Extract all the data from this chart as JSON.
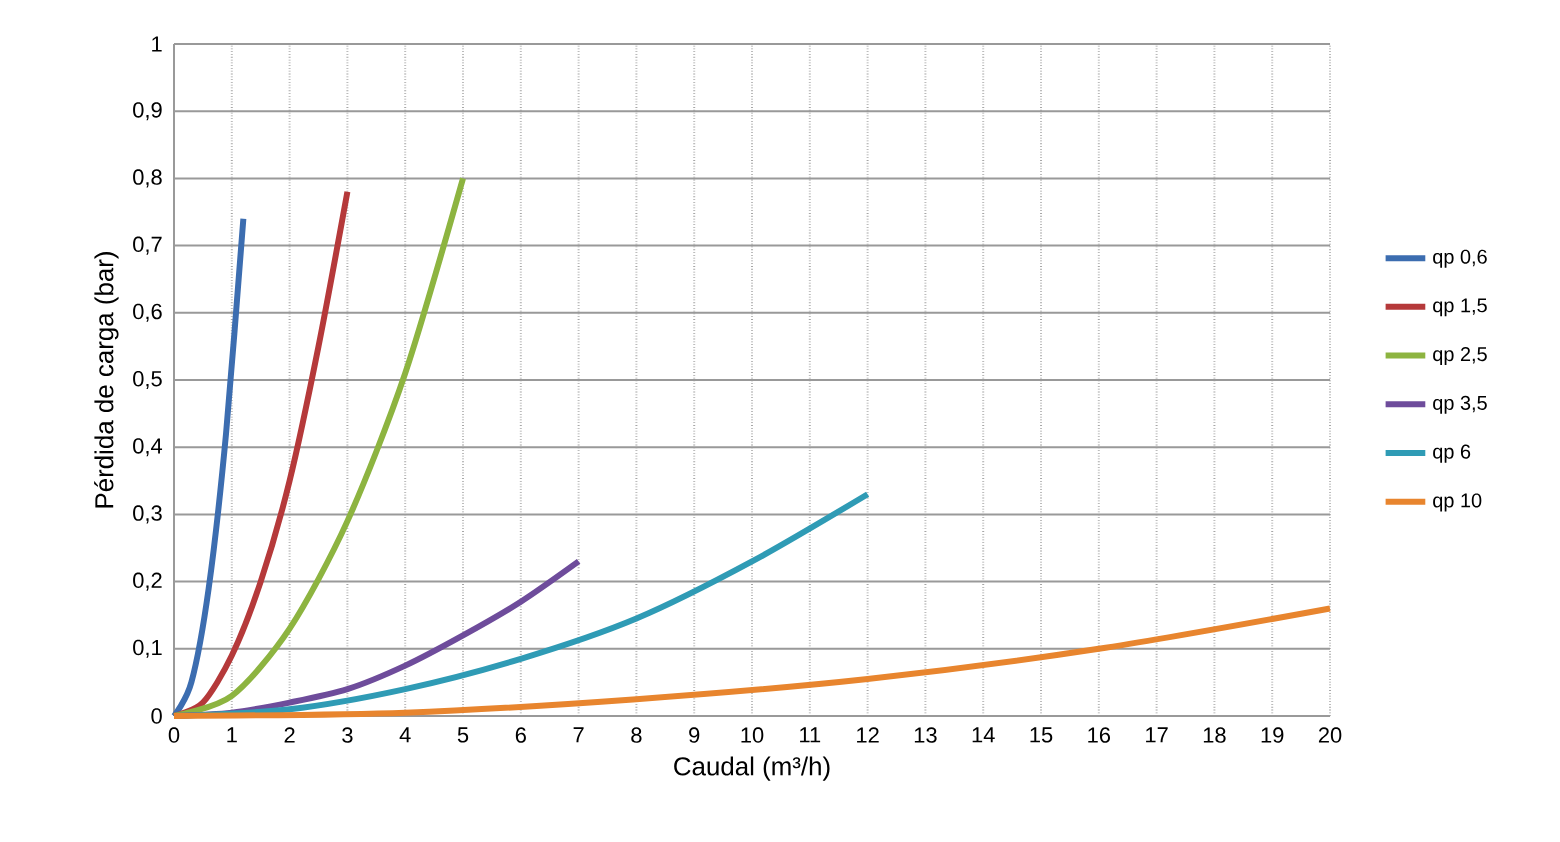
{
  "chart_data": {
    "type": "line",
    "xlabel": "Caudal (m³/h)",
    "ylabel": "Pérdida de carga (bar)",
    "xlim": [
      0,
      20
    ],
    "ylim": [
      0,
      1
    ],
    "xticks": [
      0,
      1,
      2,
      3,
      4,
      5,
      6,
      7,
      8,
      9,
      10,
      11,
      12,
      13,
      14,
      15,
      16,
      17,
      18,
      19,
      20
    ],
    "yticks": [
      0,
      {
        "value": 0.1,
        "label": "0,1"
      },
      {
        "value": 0.2,
        "label": "0,2"
      },
      {
        "value": 0.3,
        "label": "0,3"
      },
      {
        "value": 0.4,
        "label": "0,4"
      },
      {
        "value": 0.5,
        "label": "0,5"
      },
      {
        "value": 0.6,
        "label": "0,6"
      },
      {
        "value": 0.7,
        "label": "0,7"
      },
      {
        "value": 0.8,
        "label": "0,8"
      },
      {
        "value": 0.9,
        "label": "0,9"
      },
      1
    ],
    "grid": true,
    "legend": "right",
    "marker": "none",
    "line_style": "solid",
    "series": [
      {
        "name": "qp 0,6",
        "color": "#3c6db0",
        "x": [
          0,
          0.3,
          0.6,
          0.9,
          1.2
        ],
        "values": [
          0,
          0.05,
          0.19,
          0.42,
          0.74
        ]
      },
      {
        "name": "qp 1,5",
        "color": "#b5393a",
        "x": [
          0,
          0.5,
          1,
          1.5,
          2,
          2.5,
          3
        ],
        "values": [
          0,
          0.02,
          0.09,
          0.2,
          0.35,
          0.55,
          0.78
        ]
      },
      {
        "name": "qp 2,5",
        "color": "#8db440",
        "x": [
          0,
          1,
          2,
          3,
          4,
          5
        ],
        "values": [
          0,
          0.03,
          0.13,
          0.29,
          0.51,
          0.8
        ]
      },
      {
        "name": "qp 3,5",
        "color": "#6e4c9b",
        "x": [
          0,
          1,
          2,
          3,
          4,
          5,
          6,
          7
        ],
        "values": [
          0,
          0.005,
          0.02,
          0.04,
          0.075,
          0.12,
          0.17,
          0.23
        ]
      },
      {
        "name": "qp 6",
        "color": "#2f9bb5",
        "x": [
          0,
          2,
          4,
          6,
          8,
          10,
          12
        ],
        "values": [
          0,
          0.01,
          0.04,
          0.085,
          0.145,
          0.23,
          0.33
        ]
      },
      {
        "name": "qp 10",
        "color": "#e8852e",
        "x": [
          0,
          4,
          8,
          12,
          16,
          20
        ],
        "values": [
          0,
          0.005,
          0.025,
          0.055,
          0.1,
          0.16
        ]
      }
    ]
  }
}
